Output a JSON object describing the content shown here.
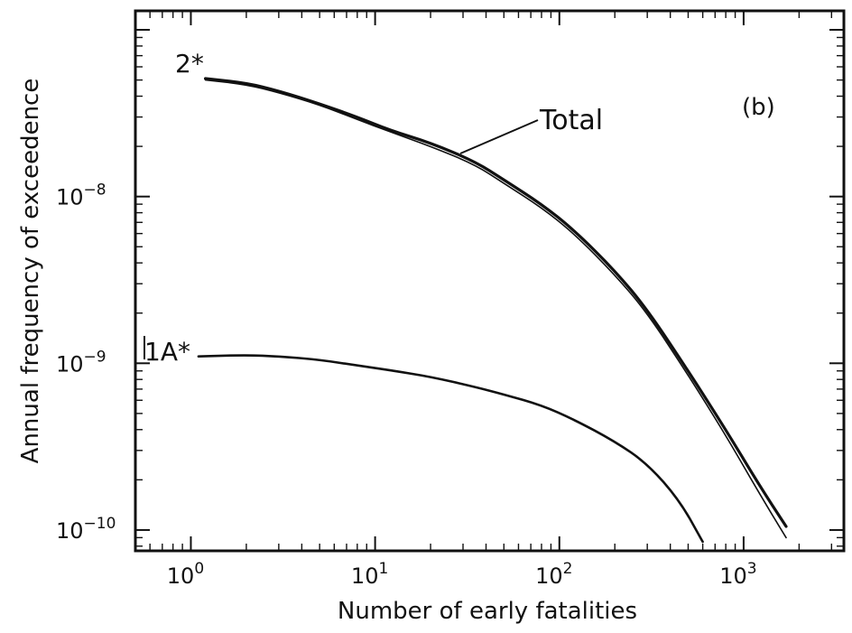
{
  "chart_data": {
    "type": "line",
    "panel_label": "(b)",
    "xlabel": "Number of early fatalities",
    "ylabel": "Annual frequency of exceedence",
    "x_scale": "log",
    "y_scale": "log",
    "xlim": [
      0.5,
      3500
    ],
    "ylim": [
      7.5e-11,
      1.3e-07
    ],
    "x_ticks": [
      {
        "value": 1,
        "base": "10",
        "exp": "0"
      },
      {
        "value": 10,
        "base": "10",
        "exp": "1"
      },
      {
        "value": 100,
        "base": "10",
        "exp": "2"
      },
      {
        "value": 1000,
        "base": "10",
        "exp": "3"
      }
    ],
    "y_ticks": [
      {
        "value": 1e-08,
        "base": "10",
        "exp": "−8"
      },
      {
        "value": 1e-09,
        "base": "10",
        "exp": "−9"
      },
      {
        "value": 1e-10,
        "base": "10",
        "exp": "−10"
      }
    ],
    "grid": false,
    "legend": "none",
    "series": [
      {
        "name": "2*",
        "line_width": 3.2,
        "x": [
          1.2,
          2,
          3,
          5,
          8,
          12,
          20,
          35,
          50,
          80,
          120,
          200,
          300,
          500,
          800,
          1200,
          1700
        ],
        "y": [
          5.1e-08,
          4.8e-08,
          4.3e-08,
          3.6e-08,
          3e-08,
          2.5e-08,
          2.1e-08,
          1.62e-08,
          1.26e-08,
          9e-09,
          6.3e-09,
          3.6e-09,
          2.1e-09,
          9e-10,
          4e-10,
          1.9e-10,
          1.05e-10
        ]
      },
      {
        "name": "Total",
        "line_width": 1.6,
        "x": [
          1.2,
          2,
          3,
          5,
          8,
          12,
          20,
          35,
          50,
          80,
          120,
          200,
          300,
          500,
          800,
          1200,
          1700
        ],
        "y": [
          5e-08,
          4.7e-08,
          4.2e-08,
          3.55e-08,
          2.9e-08,
          2.45e-08,
          2e-08,
          1.55e-08,
          1.2e-08,
          8.6e-09,
          6e-09,
          3.4e-09,
          2e-09,
          8.5e-10,
          3.7e-10,
          1.7e-10,
          9e-11
        ]
      },
      {
        "name": "1A*",
        "line_width": 2.6,
        "x": [
          1.1,
          2,
          3,
          5,
          8,
          12,
          20,
          35,
          50,
          80,
          120,
          200,
          300,
          450,
          600
        ],
        "y": [
          1.1e-09,
          1.12e-09,
          1.1e-09,
          1.05e-09,
          9.7e-10,
          9.1e-10,
          8.3e-10,
          7.2e-10,
          6.5e-10,
          5.6e-10,
          4.6e-10,
          3.4e-10,
          2.5e-10,
          1.5e-10,
          8.5e-11
        ]
      }
    ]
  }
}
